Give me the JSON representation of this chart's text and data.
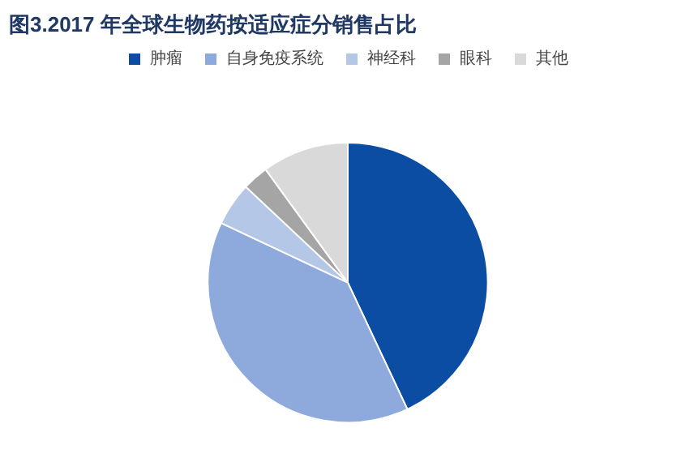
{
  "chart_data": {
    "type": "pie",
    "title": "图3.2017 年全球生物药按适应症分销售占比",
    "categories": [
      "肿瘤",
      "自身免疫系统",
      "神经科",
      "眼科",
      "其他"
    ],
    "values": [
      43,
      39,
      5,
      3,
      10
    ],
    "colors": [
      "#0b4da2",
      "#8eaadc",
      "#b4c7e7",
      "#a5a5a5",
      "#d9d9d9"
    ],
    "legend": "top"
  }
}
